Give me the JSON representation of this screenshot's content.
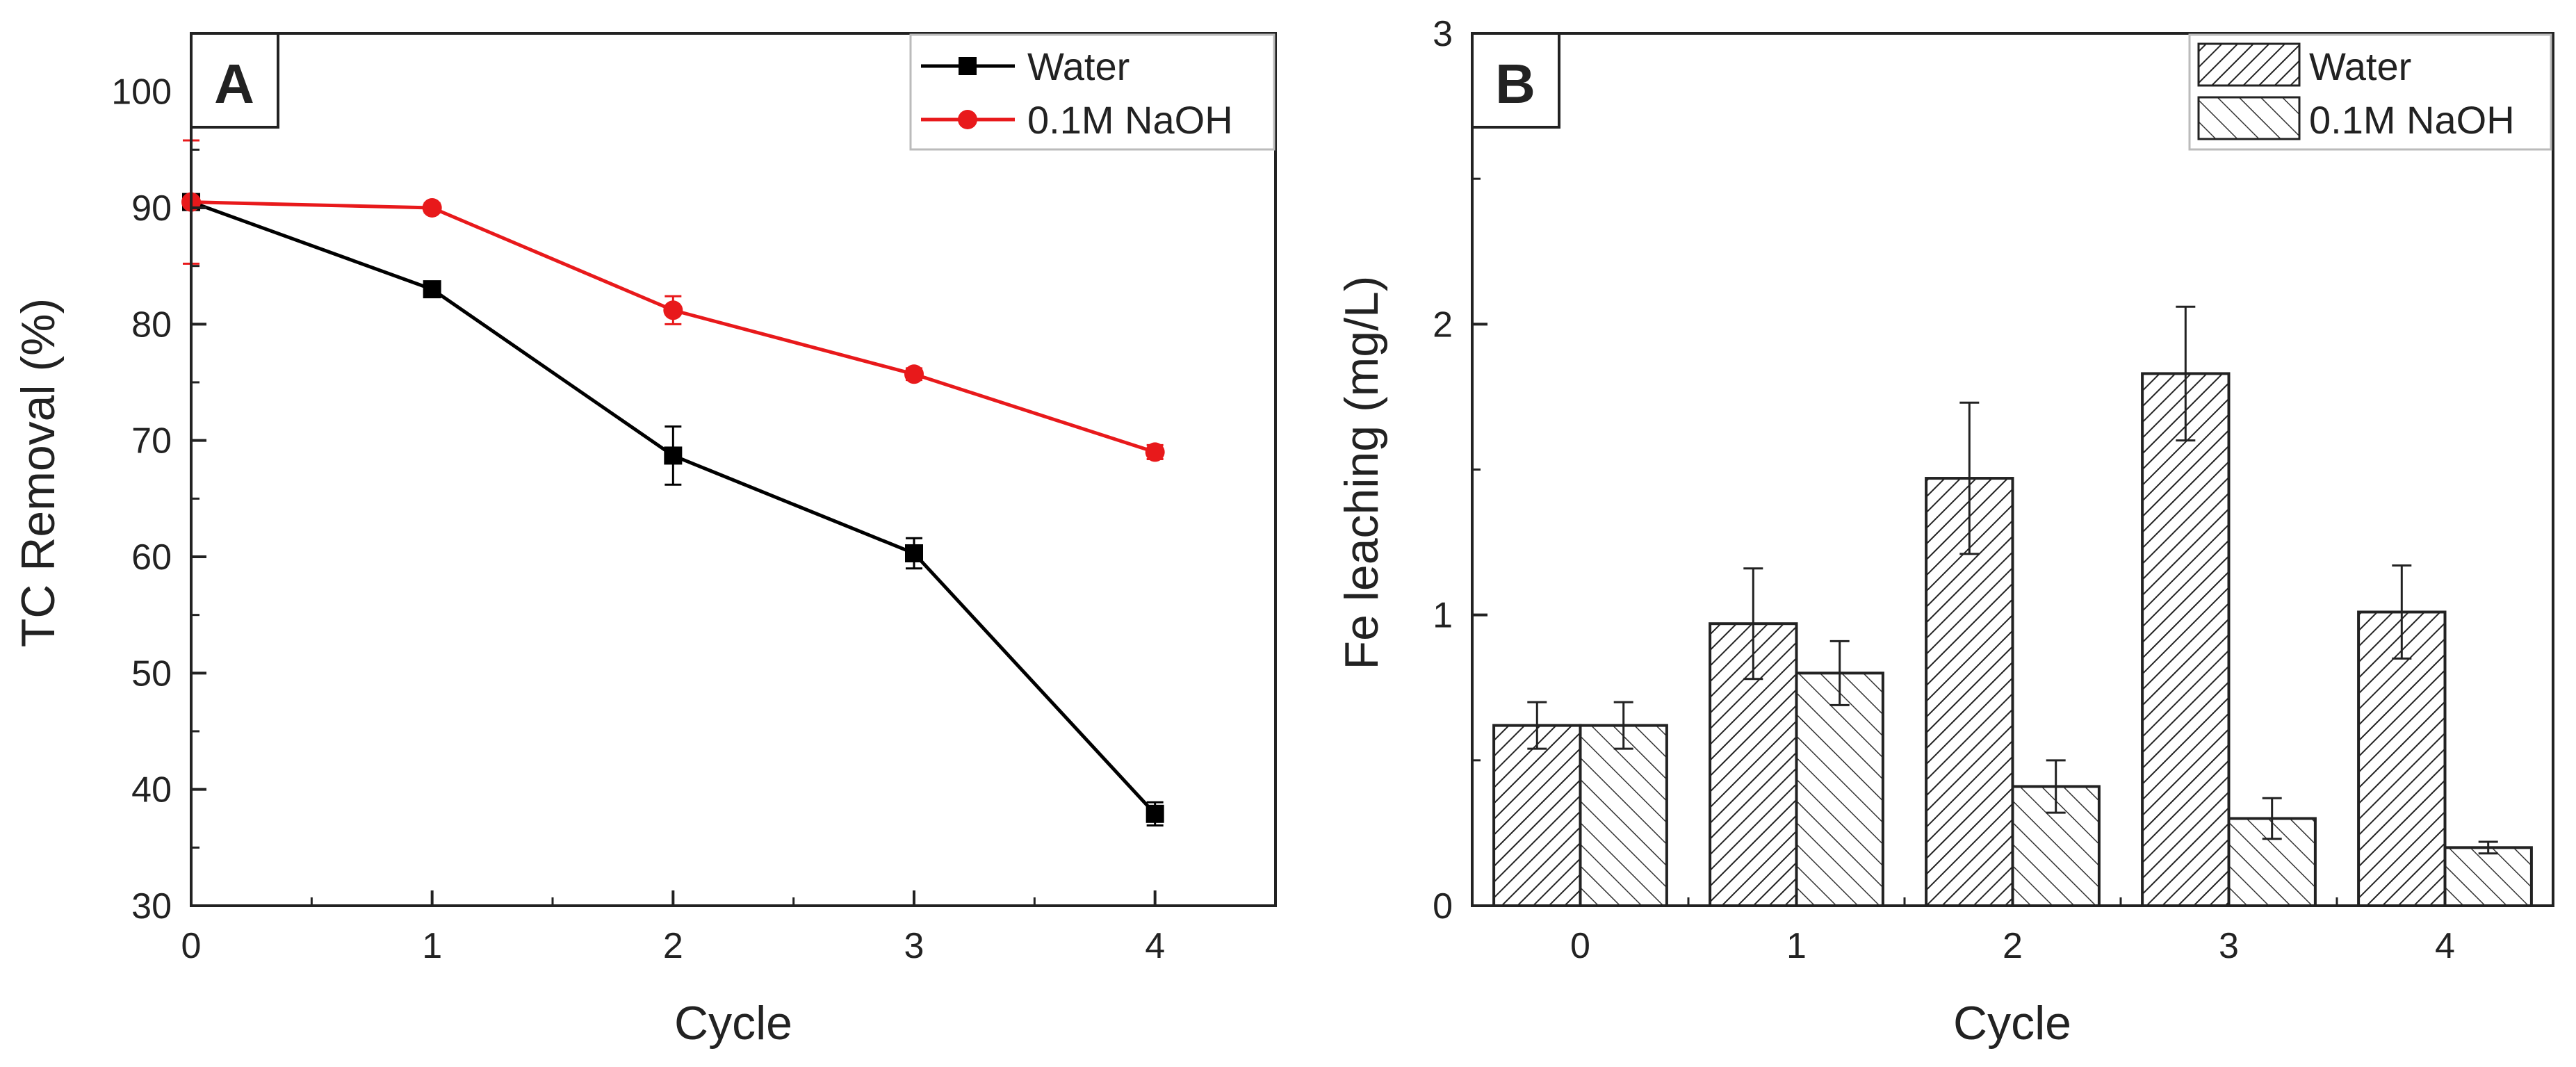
{
  "chart_data": [
    {
      "panel": "A",
      "type": "line",
      "xlabel": "Cycle",
      "ylabel": "TC Removal (%)",
      "xlim": [
        0,
        4.5
      ],
      "ylim": [
        30,
        105
      ],
      "x_ticks": [
        0,
        1,
        2,
        3,
        4
      ],
      "y_ticks": [
        30,
        40,
        50,
        60,
        70,
        80,
        90,
        100
      ],
      "grid": false,
      "legend_position": "top-right",
      "x": [
        0,
        1,
        2,
        3,
        4
      ],
      "series": [
        {
          "name": "Water",
          "color": "#000000",
          "marker": "square",
          "values": [
            90.5,
            83.0,
            68.7,
            60.3,
            37.9
          ],
          "errors": [
            0.0,
            0.5,
            2.5,
            1.3,
            1.0
          ]
        },
        {
          "name": "0.1M NaOH",
          "color": "#e8191b",
          "marker": "circle",
          "values": [
            90.5,
            90.0,
            81.2,
            75.7,
            69.0
          ],
          "errors": [
            5.3,
            0.4,
            1.2,
            0.5,
            0.6
          ]
        }
      ]
    },
    {
      "panel": "B",
      "type": "bar",
      "xlabel": "Cycle",
      "ylabel": "Fe leaching (mg/L)",
      "ylim": [
        0,
        3
      ],
      "y_ticks": [
        0,
        1,
        2,
        3
      ],
      "categories": [
        "0",
        "1",
        "2",
        "3",
        "4"
      ],
      "grid": false,
      "legend_position": "top-right",
      "series": [
        {
          "name": "Water",
          "pattern": "dense-forward-hatch",
          "values": [
            0.62,
            0.97,
            1.47,
            1.83,
            1.01
          ],
          "errors": [
            0.08,
            0.19,
            0.26,
            0.23,
            0.16
          ]
        },
        {
          "name": "0.1M NaOH",
          "pattern": "backward-hatch",
          "values": [
            0.62,
            0.8,
            0.41,
            0.3,
            0.2
          ],
          "errors": [
            0.08,
            0.11,
            0.09,
            0.07,
            0.02
          ]
        }
      ]
    }
  ]
}
